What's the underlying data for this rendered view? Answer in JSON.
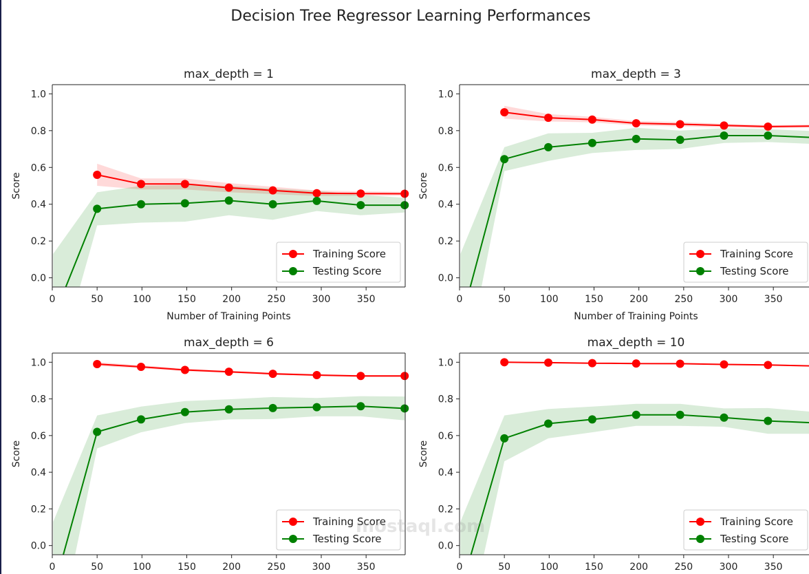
{
  "suptitle": "Decision Tree Regressor Learning Performances",
  "watermark": "mostaql.com",
  "chart_data": [
    {
      "type": "line",
      "title": "max_depth = 1",
      "xlabel": "Number of Training Points",
      "ylabel": "Score",
      "xlim": [
        0,
        393.6
      ],
      "ylim": [
        -0.05,
        1.05
      ],
      "xticks": [
        0,
        50,
        100,
        150,
        200,
        250,
        300,
        350
      ],
      "yticks": [
        "0.0",
        "0.2",
        "0.4",
        "0.6",
        "0.8",
        "1.0"
      ],
      "legend": "lower right",
      "x": [
        1,
        50,
        99,
        148,
        197,
        246,
        295,
        344,
        393
      ],
      "series": [
        {
          "name": "Training Score",
          "color": "#ff0000",
          "values": [
            null,
            0.56,
            0.51,
            0.51,
            0.49,
            0.475,
            0.46,
            0.458,
            0.457
          ],
          "std": [
            null,
            0.06,
            0.03,
            0.03,
            0.025,
            0.02,
            0.015,
            0.012,
            0.01
          ]
        },
        {
          "name": "Testing Score",
          "color": "#008000",
          "values": [
            -0.22,
            0.375,
            0.4,
            0.405,
            0.42,
            0.4,
            0.418,
            0.395,
            0.395
          ],
          "std": [
            0.35,
            0.09,
            0.1,
            0.1,
            0.08,
            0.085,
            0.055,
            0.055,
            0.04
          ]
        }
      ]
    },
    {
      "type": "line",
      "title": "max_depth = 3",
      "xlabel": "Number of Training Points",
      "ylabel": "Score",
      "xlim": [
        0,
        393.6
      ],
      "ylim": [
        -0.05,
        1.05
      ],
      "xticks": [
        0,
        50,
        100,
        150,
        200,
        250,
        300,
        350
      ],
      "yticks": [
        "0.0",
        "0.2",
        "0.4",
        "0.6",
        "0.8",
        "1.0"
      ],
      "legend": "lower right",
      "x": [
        1,
        50,
        99,
        148,
        197,
        246,
        295,
        344,
        393
      ],
      "series": [
        {
          "name": "Training Score",
          "color": "#ff0000",
          "values": [
            null,
            0.9,
            0.87,
            0.86,
            0.84,
            0.835,
            0.828,
            0.822,
            0.825
          ],
          "std": [
            null,
            0.035,
            0.02,
            0.015,
            0.012,
            0.012,
            0.01,
            0.008,
            0.008
          ]
        },
        {
          "name": "Testing Score",
          "color": "#008000",
          "values": [
            -0.25,
            0.645,
            0.71,
            0.733,
            0.755,
            0.75,
            0.773,
            0.773,
            0.763
          ],
          "std": [
            0.38,
            0.065,
            0.075,
            0.055,
            0.06,
            0.05,
            0.04,
            0.035,
            0.035
          ]
        }
      ]
    },
    {
      "type": "line",
      "title": "max_depth = 6",
      "xlabel": "",
      "ylabel": "Score",
      "xlim": [
        0,
        393.6
      ],
      "ylim": [
        -0.05,
        1.05
      ],
      "xticks": [
        0,
        50,
        100,
        150,
        200,
        250,
        300,
        350
      ],
      "yticks": [
        "0.0",
        "0.2",
        "0.4",
        "0.6",
        "0.8",
        "1.0"
      ],
      "legend": "lower right",
      "x": [
        1,
        50,
        99,
        148,
        197,
        246,
        295,
        344,
        393
      ],
      "series": [
        {
          "name": "Training Score",
          "color": "#ff0000",
          "values": [
            null,
            0.99,
            0.975,
            0.958,
            0.948,
            0.937,
            0.93,
            0.925,
            0.925
          ],
          "std": [
            null,
            0.01,
            0.008,
            0.007,
            0.006,
            0.006,
            0.005,
            0.005,
            0.005
          ]
        },
        {
          "name": "Testing Score",
          "color": "#008000",
          "values": [
            -0.25,
            0.62,
            0.688,
            0.728,
            0.743,
            0.75,
            0.755,
            0.76,
            0.748
          ],
          "std": [
            0.38,
            0.09,
            0.07,
            0.06,
            0.055,
            0.06,
            0.05,
            0.055,
            0.065
          ]
        }
      ]
    },
    {
      "type": "line",
      "title": "max_depth = 10",
      "xlabel": "",
      "ylabel": "Score",
      "xlim": [
        0,
        393.6
      ],
      "ylim": [
        -0.05,
        1.05
      ],
      "xticks": [
        0,
        50,
        100,
        150,
        200,
        250,
        300,
        350
      ],
      "yticks": [
        "0.0",
        "0.2",
        "0.4",
        "0.6",
        "0.8",
        "1.0"
      ],
      "legend": "lower right",
      "x": [
        1,
        50,
        99,
        148,
        197,
        246,
        295,
        344,
        393
      ],
      "series": [
        {
          "name": "Training Score",
          "color": "#ff0000",
          "values": [
            null,
            1.0,
            0.998,
            0.995,
            0.993,
            0.992,
            0.988,
            0.985,
            0.98
          ],
          "std": [
            null,
            0.003,
            0.003,
            0.003,
            0.003,
            0.003,
            0.003,
            0.003,
            0.003
          ]
        },
        {
          "name": "Testing Score",
          "color": "#008000",
          "values": [
            -0.25,
            0.585,
            0.665,
            0.688,
            0.713,
            0.713,
            0.698,
            0.68,
            0.67
          ],
          "std": [
            0.38,
            0.125,
            0.08,
            0.07,
            0.06,
            0.06,
            0.05,
            0.07,
            0.06
          ]
        }
      ]
    }
  ]
}
